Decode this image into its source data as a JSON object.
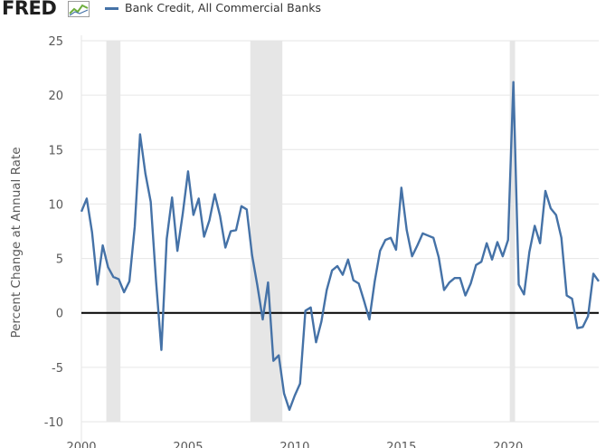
{
  "header": {
    "logo_text": "FRED",
    "logo_icon": "line-chart-icon",
    "legend_label": "Bank Credit, All Commercial Banks",
    "legend_color": "#4572a7"
  },
  "chart_data": {
    "type": "line",
    "title": "",
    "xlabel": "",
    "ylabel": "Percent Change at Annual Rate",
    "ylim": [
      -10,
      25
    ],
    "xlim": [
      2000,
      2024.25
    ],
    "y_ticks": [
      25,
      20,
      15,
      10,
      5,
      0,
      -5,
      -10
    ],
    "x_ticks": [
      2000,
      2005,
      2010,
      2015,
      2020
    ],
    "grid": "horizontal",
    "zero_line": true,
    "legend_position": "top-left",
    "series": [
      {
        "name": "Bank Credit, All Commercial Banks",
        "color": "#4572a7",
        "x": [
          2000.0,
          2000.25,
          2000.5,
          2000.75,
          2001.0,
          2001.25,
          2001.5,
          2001.75,
          2002.0,
          2002.25,
          2002.5,
          2002.75,
          2003.0,
          2003.25,
          2003.5,
          2003.75,
          2004.0,
          2004.25,
          2004.5,
          2004.75,
          2005.0,
          2005.25,
          2005.5,
          2005.75,
          2006.0,
          2006.25,
          2006.5,
          2006.75,
          2007.0,
          2007.25,
          2007.5,
          2007.75,
          2008.0,
          2008.25,
          2008.5,
          2008.75,
          2009.0,
          2009.25,
          2009.5,
          2009.75,
          2010.0,
          2010.25,
          2010.5,
          2010.75,
          2011.0,
          2011.25,
          2011.5,
          2011.75,
          2012.0,
          2012.25,
          2012.5,
          2012.75,
          2013.0,
          2013.25,
          2013.5,
          2013.75,
          2014.0,
          2014.25,
          2014.5,
          2014.75,
          2015.0,
          2015.25,
          2015.5,
          2015.75,
          2016.0,
          2016.25,
          2016.5,
          2016.75,
          2017.0,
          2017.25,
          2017.5,
          2017.75,
          2018.0,
          2018.25,
          2018.5,
          2018.75,
          2019.0,
          2019.25,
          2019.5,
          2019.75,
          2020.0,
          2020.25,
          2020.5,
          2020.75,
          2021.0,
          2021.25,
          2021.5,
          2021.75,
          2022.0,
          2022.25,
          2022.5,
          2022.75,
          2023.0,
          2023.25,
          2023.5,
          2023.75,
          2024.0,
          2024.25
        ],
        "values": [
          9.3,
          10.5,
          7.4,
          2.6,
          6.2,
          4.2,
          3.3,
          3.1,
          1.9,
          2.9,
          7.9,
          16.4,
          12.8,
          10.2,
          2.9,
          -3.4,
          6.8,
          10.6,
          5.7,
          9.1,
          13.0,
          9.0,
          10.5,
          7.0,
          8.5,
          10.9,
          8.9,
          6.0,
          7.5,
          7.6,
          9.8,
          9.5,
          5.3,
          2.5,
          -0.6,
          2.8,
          -4.4,
          -3.9,
          -7.4,
          -8.9,
          -7.6,
          -6.5,
          0.2,
          0.5,
          -2.7,
          -0.8,
          2.1,
          3.9,
          4.3,
          3.5,
          4.9,
          3.0,
          2.7,
          1.1,
          -0.6,
          2.9,
          5.7,
          6.7,
          6.9,
          5.8,
          11.5,
          7.6,
          5.2,
          6.2,
          7.3,
          7.1,
          6.9,
          5.1,
          2.1,
          2.8,
          3.2,
          3.2,
          1.6,
          2.7,
          4.4,
          4.7,
          6.4,
          4.9,
          6.5,
          5.2,
          6.7,
          21.2,
          2.6,
          1.7,
          5.6,
          8.0,
          6.4,
          11.2,
          9.6,
          9.0,
          6.9,
          1.6,
          1.3,
          -1.4,
          -1.3,
          -0.3,
          3.6,
          2.9
        ]
      }
    ],
    "recessions": [
      {
        "start": 2001.17,
        "end": 2001.83
      },
      {
        "start": 2007.92,
        "end": 2009.42
      },
      {
        "start": 2020.08,
        "end": 2020.33
      }
    ],
    "shade_color": "#e6e6e6"
  }
}
